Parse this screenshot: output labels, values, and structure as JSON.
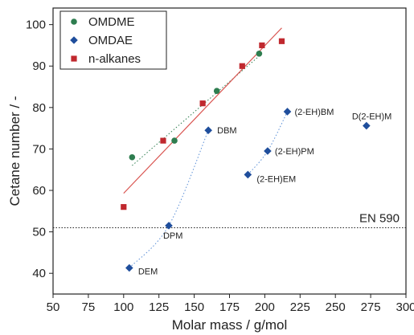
{
  "chart_data": {
    "type": "scatter",
    "xlabel": "Molar mass / g/mol",
    "ylabel": "Cetane number / -",
    "xlim": [
      50,
      300
    ],
    "ylim": [
      35,
      104
    ],
    "xticks": [
      50,
      75,
      100,
      125,
      150,
      175,
      200,
      225,
      250,
      275,
      300
    ],
    "yticks": [
      40,
      50,
      60,
      70,
      80,
      90,
      100
    ],
    "grid": false,
    "legend_position": "top-left",
    "series": [
      {
        "name": "OMDME",
        "marker": "circle",
        "color": "#2e7d4f",
        "points": [
          {
            "x": 106,
            "y": 68
          },
          {
            "x": 136,
            "y": 72
          },
          {
            "x": 166,
            "y": 84
          },
          {
            "x": 196,
            "y": 93
          }
        ],
        "fit": {
          "style": "dotted",
          "color": "#2e7d4f",
          "from": [
            106,
            66
          ],
          "to": [
            198,
            93
          ]
        }
      },
      {
        "name": "OMDAE",
        "marker": "diamond",
        "color": "#1f4e9c",
        "points": [
          {
            "x": 104,
            "y": 41.3,
            "label": "DEM"
          },
          {
            "x": 132,
            "y": 51.5,
            "label": "DPM"
          },
          {
            "x": 160,
            "y": 74.5,
            "label": "DBM"
          },
          {
            "x": 188,
            "y": 63.8,
            "label": "(2-EH)EM"
          },
          {
            "x": 202,
            "y": 69.5,
            "label": "(2-EH)PM"
          },
          {
            "x": 216,
            "y": 79,
            "label": "(2-EH)BM"
          },
          {
            "x": 272,
            "y": 75.6,
            "label": "D(2-EH)M"
          }
        ],
        "fits": [
          {
            "style": "dotted",
            "color": "#5b8fd6",
            "through": [
              [
                104,
                41.3
              ],
              [
                132,
                51.5
              ],
              [
                160,
                74.5
              ]
            ]
          },
          {
            "style": "dotted",
            "color": "#5b8fd6",
            "through": [
              [
                188,
                63.8
              ],
              [
                202,
                69.5
              ],
              [
                216,
                79
              ]
            ]
          }
        ]
      },
      {
        "name": "n-alkanes",
        "marker": "square",
        "color": "#c0282e",
        "points": [
          {
            "x": 100,
            "y": 56
          },
          {
            "x": 128,
            "y": 72
          },
          {
            "x": 156,
            "y": 81
          },
          {
            "x": 184,
            "y": 90
          },
          {
            "x": 198,
            "y": 95
          },
          {
            "x": 212,
            "y": 96
          }
        ],
        "fit": {
          "style": "solid",
          "color": "#d9534f",
          "from": [
            100,
            59.3
          ],
          "to": [
            212,
            99.2
          ]
        }
      }
    ],
    "reference_line": {
      "y": 51,
      "label": "EN 590",
      "style": "dotted",
      "color": "#222222"
    }
  }
}
